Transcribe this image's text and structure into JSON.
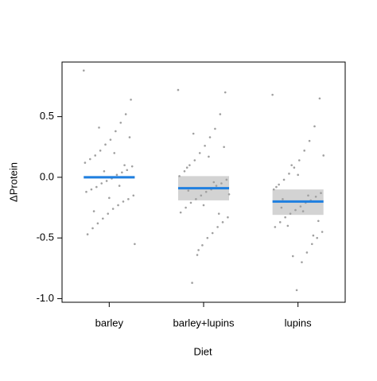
{
  "chart_data": {
    "type": "effect",
    "x_label": "Diet",
    "y_label": "ΔProtein",
    "categories": [
      "barley",
      "barley+lupins",
      "lupins"
    ],
    "fit": [
      0,
      -0.09,
      -0.2
    ],
    "lower": [
      -0.01,
      -0.19,
      -0.31
    ],
    "upper": [
      0.01,
      0.01,
      -0.1
    ],
    "fit_color": "#1f7fe0",
    "band_color": "#d3d3d3",
    "point_color": "#a0a0a0",
    "points": [
      [
        0.88,
        0.64,
        0.52,
        0.45,
        0.38,
        0.31,
        0.27,
        0.22,
        0.18,
        0.15,
        0.12,
        0.09,
        0.06,
        0.04,
        0.02,
        -0.01,
        -0.03,
        -0.05,
        -0.08,
        -0.1,
        -0.12,
        -0.15,
        -0.18,
        -0.2,
        -0.23,
        -0.26,
        -0.3,
        -0.34,
        -0.38,
        -0.42,
        -0.47,
        -0.55,
        0.33,
        0.1,
        -0.07,
        0.2,
        -0.17,
        0.05,
        0.41,
        -0.28
      ],
      [
        0.72,
        0.7,
        0.52,
        0.4,
        0.33,
        0.26,
        0.2,
        0.14,
        0.1,
        0.05,
        0.01,
        -0.02,
        -0.05,
        -0.07,
        -0.1,
        -0.12,
        -0.15,
        -0.18,
        -0.21,
        -0.25,
        -0.29,
        -0.33,
        -0.37,
        -0.41,
        -0.46,
        -0.5,
        -0.56,
        -0.64,
        -0.87,
        0.08,
        -0.09,
        -0.14,
        0.25,
        -0.3,
        -0.04,
        0.17,
        -0.23,
        -0.6,
        0.36,
        -0.11
      ],
      [
        0.68,
        0.65,
        0.42,
        0.3,
        0.22,
        0.14,
        0.08,
        0.03,
        -0.02,
        -0.06,
        -0.1,
        -0.13,
        -0.16,
        -0.19,
        -0.21,
        -0.24,
        -0.27,
        -0.3,
        -0.33,
        -0.37,
        -0.41,
        -0.45,
        -0.5,
        -0.55,
        -0.62,
        -0.7,
        -0.93,
        0.1,
        -0.2,
        -0.25,
        -0.08,
        0.18,
        -0.36,
        -0.48,
        -0.15,
        -0.28,
        0.02,
        -0.65,
        -0.4,
        -0.18
      ]
    ],
    "ylim": [
      -1.03,
      0.95
    ],
    "yticks": [
      {
        "value": -1,
        "label": "-1.0"
      },
      -0.5,
      {
        "value": 0,
        "label": "0.0"
      },
      0.5
    ]
  }
}
